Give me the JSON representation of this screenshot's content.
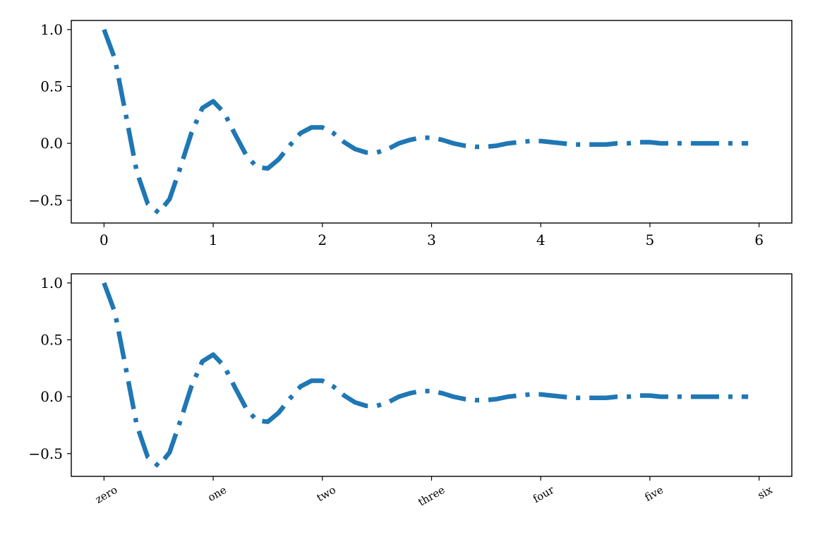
{
  "chart_data": [
    {
      "type": "line",
      "title": "",
      "xlabel": "",
      "ylabel": "",
      "xlim": [
        -0.3,
        6.3
      ],
      "ylim": [
        -0.7,
        1.08
      ],
      "xticks": [
        0,
        1,
        2,
        3,
        4,
        5,
        6
      ],
      "xtick_labels": [
        "0",
        "1",
        "2",
        "3",
        "4",
        "5",
        "6"
      ],
      "xtick_rotation": 0,
      "yticks": [
        -0.5,
        0.0,
        0.5,
        1.0
      ],
      "ytick_labels": [
        "−0.5",
        "0.0",
        "0.5",
        "1.0"
      ],
      "grid": false,
      "line_style": "dashdot",
      "color": "#1f77b4",
      "series": [
        {
          "x": [
            0.0,
            0.1,
            0.2,
            0.3,
            0.4,
            0.5,
            0.6,
            0.7,
            0.8,
            0.9,
            1.0,
            1.1,
            1.2,
            1.3,
            1.4,
            1.5,
            1.6,
            1.7,
            1.8,
            1.9,
            2.0,
            2.1,
            2.2,
            2.3,
            2.4,
            2.5,
            2.6,
            2.7,
            2.8,
            2.9,
            3.0,
            3.1,
            3.2,
            3.3,
            3.4,
            3.5,
            3.6,
            3.7,
            3.8,
            3.9,
            4.0,
            4.1,
            4.2,
            4.3,
            4.4,
            4.5,
            4.6,
            4.7,
            4.8,
            4.9,
            5.0,
            5.1,
            5.2,
            5.3,
            5.4,
            5.5,
            5.6,
            5.7,
            5.8,
            5.9
          ],
          "y": [
            1.0,
            0.74,
            0.25,
            -0.25,
            -0.53,
            -0.61,
            -0.49,
            -0.21,
            0.09,
            0.31,
            0.37,
            0.27,
            0.08,
            -0.1,
            -0.21,
            -0.22,
            -0.14,
            -0.02,
            0.09,
            0.14,
            0.14,
            0.09,
            0.01,
            -0.05,
            -0.08,
            -0.08,
            -0.05,
            0.0,
            0.03,
            0.05,
            0.05,
            0.03,
            0.0,
            -0.02,
            -0.03,
            -0.03,
            -0.02,
            0.0,
            0.01,
            0.02,
            0.02,
            0.01,
            0.0,
            -0.01,
            -0.01,
            -0.01,
            -0.01,
            0.0,
            0.0,
            0.01,
            0.01,
            0.0,
            0.0,
            0.0,
            0.0,
            0.0,
            0.0,
            0.0,
            0.0,
            0.0
          ]
        }
      ]
    },
    {
      "type": "line",
      "title": "",
      "xlabel": "",
      "ylabel": "",
      "xlim": [
        -0.3,
        6.3
      ],
      "ylim": [
        -0.7,
        1.08
      ],
      "xticks": [
        0,
        1,
        2,
        3,
        4,
        5,
        6
      ],
      "xtick_labels": [
        "zero",
        "one",
        "two",
        "three",
        "four",
        "five",
        "six"
      ],
      "xtick_rotation": 30,
      "yticks": [
        -0.5,
        0.0,
        0.5,
        1.0
      ],
      "ytick_labels": [
        "−0.5",
        "0.0",
        "0.5",
        "1.0"
      ],
      "grid": false,
      "line_style": "dashdot",
      "color": "#1f77b4",
      "series": [
        {
          "x": [
            0.0,
            0.1,
            0.2,
            0.3,
            0.4,
            0.5,
            0.6,
            0.7,
            0.8,
            0.9,
            1.0,
            1.1,
            1.2,
            1.3,
            1.4,
            1.5,
            1.6,
            1.7,
            1.8,
            1.9,
            2.0,
            2.1,
            2.2,
            2.3,
            2.4,
            2.5,
            2.6,
            2.7,
            2.8,
            2.9,
            3.0,
            3.1,
            3.2,
            3.3,
            3.4,
            3.5,
            3.6,
            3.7,
            3.8,
            3.9,
            4.0,
            4.1,
            4.2,
            4.3,
            4.4,
            4.5,
            4.6,
            4.7,
            4.8,
            4.9,
            5.0,
            5.1,
            5.2,
            5.3,
            5.4,
            5.5,
            5.6,
            5.7,
            5.8,
            5.9
          ],
          "y": [
            1.0,
            0.74,
            0.25,
            -0.25,
            -0.53,
            -0.61,
            -0.49,
            -0.21,
            0.09,
            0.31,
            0.37,
            0.27,
            0.08,
            -0.1,
            -0.21,
            -0.22,
            -0.14,
            -0.02,
            0.09,
            0.14,
            0.14,
            0.09,
            0.01,
            -0.05,
            -0.08,
            -0.08,
            -0.05,
            0.0,
            0.03,
            0.05,
            0.05,
            0.03,
            0.0,
            -0.02,
            -0.03,
            -0.03,
            -0.02,
            0.0,
            0.01,
            0.02,
            0.02,
            0.01,
            0.0,
            -0.01,
            -0.01,
            -0.01,
            -0.01,
            0.0,
            0.0,
            0.01,
            0.01,
            0.0,
            0.0,
            0.0,
            0.0,
            0.0,
            0.0,
            0.0,
            0.0,
            0.0
          ]
        }
      ]
    }
  ]
}
